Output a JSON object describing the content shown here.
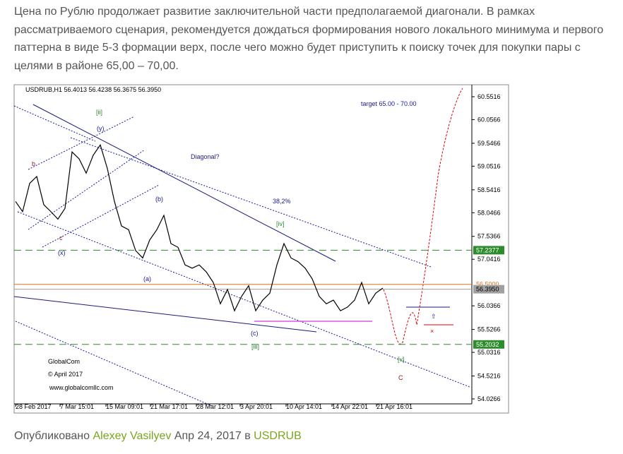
{
  "article": {
    "lines": [
      "Цена по Рублю продолжает развитие заключительной части предполагаемой диагонали. В рамках",
      "рассматриваемого сценария, рекомендуется дождаться формирования нового локального минимума и первого",
      "паттерна в виде 5-3 формации верх, после чего можно будет приступить к поиску точек для покупки пары с",
      "целями в районе  65,00 – 70,00."
    ],
    "footer": {
      "prefix": "Опубликовано",
      "author": "Alexey Vasilyev",
      "date": "Апр 24, 2017 в",
      "symbol": "USDRUB"
    }
  },
  "chart_data": {
    "type": "line",
    "title": "USDRUB,H1  56.4013 56.4238 56.3675 56.3950",
    "series": [
      {
        "name": "USDRUB",
        "color": "#000000",
        "values": [
          58.29,
          58.07,
          58.68,
          58.83,
          58.22,
          58.07,
          57.91,
          58.14,
          59.36,
          59.21,
          58.9,
          59.29,
          59.51,
          59.0,
          58.29,
          57.76,
          57.68,
          57.23,
          57.07,
          57.46,
          57.68,
          57.99,
          57.38,
          57.3,
          56.92,
          56.85,
          56.92,
          56.77,
          56.54,
          56.08,
          56.39,
          55.93,
          56.24,
          56.47,
          55.93,
          56.16,
          56.31,
          56.92,
          57.38,
          57.07,
          56.99,
          56.85,
          56.62,
          56.24,
          56.08,
          56.16,
          55.93,
          56.01,
          56.16,
          56.54,
          56.08,
          56.31,
          56.42
        ]
      }
    ],
    "ylim": [
      53.95,
      60.78
    ],
    "yticks": [
      60.5516,
      60.0566,
      59.5466,
      59.0516,
      58.5416,
      58.0466,
      57.5366,
      57.0416,
      56.0366,
      55.5266,
      55.0316,
      54.5216,
      54.0266
    ],
    "xlabels": [
      "28 Feb 2017",
      "7 Mar 15:01",
      "15 Mar 09:01",
      "21 Mar 17:01",
      "28 Mar 12:01",
      "3 Apr 20:01",
      "10 Apr 14:01",
      "14 Apr 22:01",
      "21 Apr 16:01"
    ],
    "levels": [
      {
        "value": 57.2377,
        "label": "57.2377",
        "color": "#2e8b2e"
      },
      {
        "value": 56.5,
        "label": "56.5000",
        "color": "#e07020"
      },
      {
        "value": 56.395,
        "label": "56.3950",
        "color": "#a0a0a0"
      },
      {
        "value": 55.2032,
        "label": "55.2032",
        "color": "#2e8b2e"
      }
    ],
    "annotations": [
      "[ii]",
      "(y)",
      "b",
      "c",
      "(x)",
      "(b)",
      "(a)",
      "Diagonal?",
      "38,2%",
      "[iv]",
      "(c)",
      "[iii]",
      "[v]",
      "C",
      "target 65.00 - 70.00",
      "GlobalCom",
      "© April 2017",
      "www.globalcomllc.com"
    ]
  }
}
